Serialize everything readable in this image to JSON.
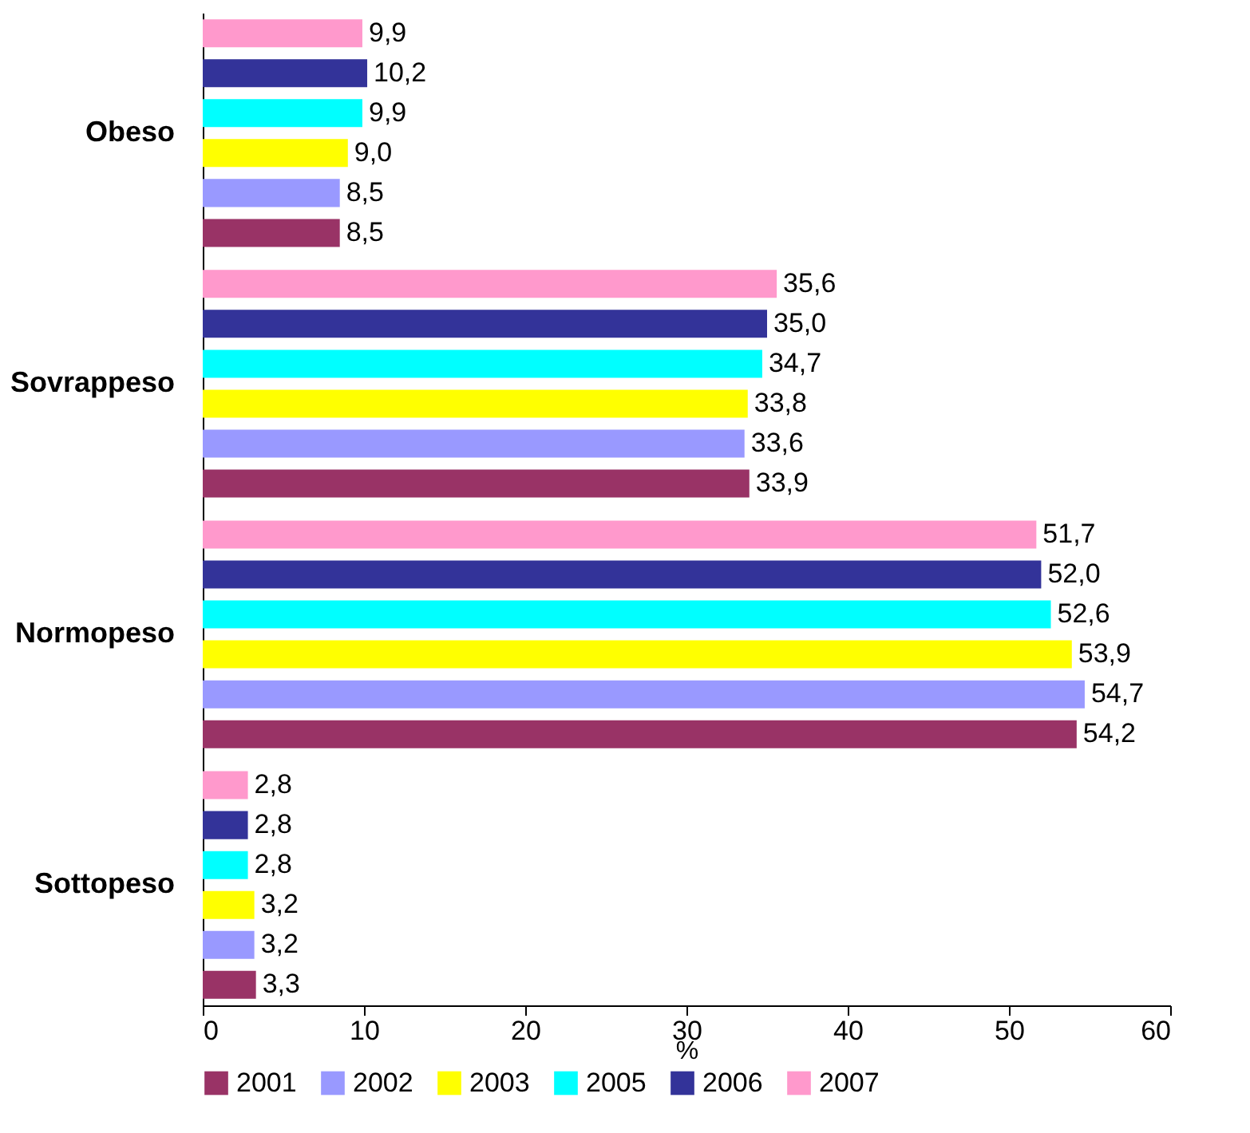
{
  "chart_data": {
    "type": "bar",
    "orientation": "horizontal",
    "xlabel": "%",
    "categories": [
      "Obeso",
      "Sovrappeso",
      "Normopeso",
      "Sottopeso"
    ],
    "series": [
      {
        "name": "2001",
        "color": "#993366",
        "values": [
          8.5,
          33.9,
          54.2,
          3.3
        ],
        "value_labels": [
          "8,5",
          "33,9",
          "54,2",
          "3,3"
        ]
      },
      {
        "name": "2002",
        "color": "#9999ff",
        "values": [
          8.5,
          33.6,
          54.7,
          3.2
        ],
        "value_labels": [
          "8,5",
          "33,6",
          "54,7",
          "3,2"
        ]
      },
      {
        "name": "2003",
        "color": "#ffff00",
        "values": [
          9.0,
          33.8,
          53.9,
          3.2
        ],
        "value_labels": [
          "9,0",
          "33,8",
          "53,9",
          "3,2"
        ]
      },
      {
        "name": "2005",
        "color": "#00ffff",
        "values": [
          9.9,
          34.7,
          52.6,
          2.8
        ],
        "value_labels": [
          "9,9",
          "34,7",
          "52,6",
          "2,8"
        ]
      },
      {
        "name": "2006",
        "color": "#333399",
        "values": [
          10.2,
          35.0,
          52.0,
          2.8
        ],
        "value_labels": [
          "10,2",
          "35,0",
          "52,0",
          "2,8"
        ]
      },
      {
        "name": "2007",
        "color": "#ff99cc",
        "values": [
          9.9,
          35.6,
          51.7,
          2.8
        ],
        "value_labels": [
          "9,9",
          "35,6",
          "51,7",
          "2,8"
        ]
      }
    ],
    "xlim": [
      0,
      60
    ],
    "xticks": [
      0,
      10,
      20,
      30,
      40,
      50,
      60
    ],
    "grid": false,
    "legend": "bottom"
  }
}
